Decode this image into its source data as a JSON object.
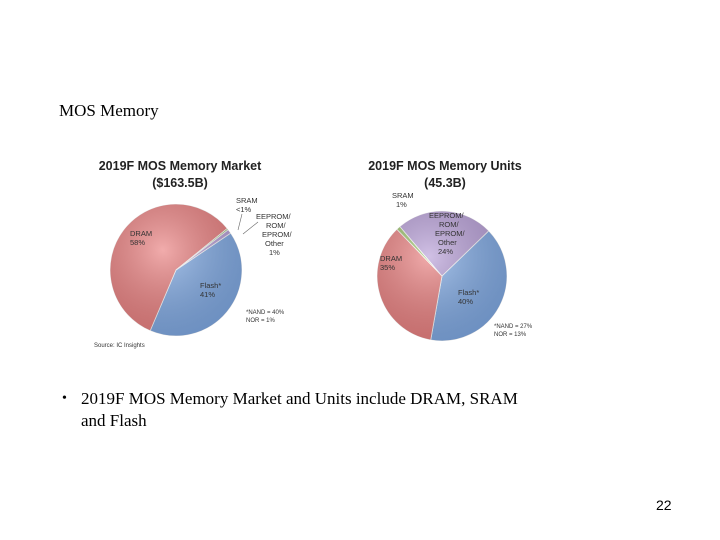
{
  "slide": {
    "title": "MOS Memory",
    "bullet": "2019F MOS Memory Market and Units include DRAM, SRAM and Flash",
    "page_number": "22"
  },
  "chart_data": [
    {
      "type": "pie",
      "title": "2019F MOS Memory Market",
      "subtitle": "($163.5B)",
      "slices": [
        {
          "label_lines": [
            "DRAM",
            "58%"
          ],
          "value": 58,
          "color": "#ea7f7f"
        },
        {
          "label_lines": [
            "Flash*",
            "41%"
          ],
          "value": 41,
          "color": "#7fa9e4"
        },
        {
          "label_lines": [
            "EEPROM/",
            "ROM/",
            "EPROM/",
            "Other",
            "1%"
          ],
          "value": 1,
          "color": "#b89fd8"
        },
        {
          "label_lines": [
            "SRAM",
            "<1%"
          ],
          "value": 0.4,
          "color": "#9cc36a"
        }
      ],
      "note_lines": [
        "*NAND = 40%",
        "NOR = 1%"
      ],
      "source": "Source:  IC Insights"
    },
    {
      "type": "pie",
      "title": "2019F MOS Memory Units",
      "subtitle": "(45.3B)",
      "slices": [
        {
          "label_lines": [
            "DRAM",
            "35%"
          ],
          "value": 35,
          "color": "#ea7f7f"
        },
        {
          "label_lines": [
            "Flash*",
            "40%"
          ],
          "value": 40,
          "color": "#7fa9e4"
        },
        {
          "label_lines": [
            "EEPROM/",
            "ROM/",
            "EPROM/",
            "Other",
            "24%"
          ],
          "value": 24,
          "color": "#b89fd8"
        },
        {
          "label_lines": [
            "SRAM",
            "1%"
          ],
          "value": 1,
          "color": "#9cc36a"
        }
      ],
      "note_lines": [
        "*NAND = 27%",
        "NOR = 13%"
      ]
    }
  ]
}
